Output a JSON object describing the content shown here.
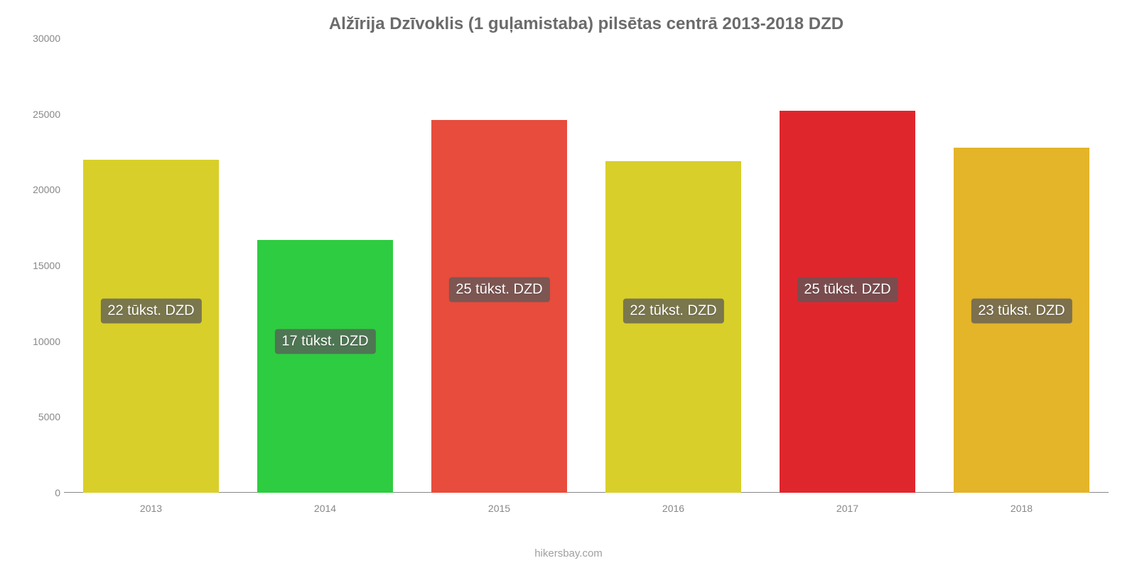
{
  "chart": {
    "type": "bar",
    "title": "Alžīrija Dzīvoklis (1 guļamistaba) pilsētas centrā 2013-2018 DZD",
    "title_fontsize": 24,
    "title_color": "#6b6b6b",
    "source": "hikersbay.com",
    "source_fontsize": 15,
    "source_color": "#a0a0a0",
    "background_color": "#ffffff",
    "axis_color": "#888888",
    "tick_fontsize": 14,
    "label_fontsize": 20,
    "bar_width_pct": 78,
    "ylim": [
      0,
      30000
    ],
    "ytick_step": 5000,
    "yticks": [
      {
        "v": 0,
        "label": "0"
      },
      {
        "v": 5000,
        "label": "5000"
      },
      {
        "v": 10000,
        "label": "10000"
      },
      {
        "v": 15000,
        "label": "15000"
      },
      {
        "v": 20000,
        "label": "20000"
      },
      {
        "v": 25000,
        "label": "25000"
      },
      {
        "v": 30000,
        "label": "30000"
      }
    ],
    "categories": [
      "2013",
      "2014",
      "2015",
      "2016",
      "2017",
      "2018"
    ],
    "series": [
      {
        "value": 22000,
        "color": "#d9cf2b",
        "label": "22 tūkst. DZD",
        "label_y": 12000
      },
      {
        "value": 16700,
        "color": "#2ecc40",
        "label": "17 tūkst. DZD",
        "label_y": 10000
      },
      {
        "value": 24600,
        "color": "#e74c3c",
        "label": "25 tūkst. DZD",
        "label_y": 13400
      },
      {
        "value": 21900,
        "color": "#d9cf2b",
        "label": "22 tūkst. DZD",
        "label_y": 12000
      },
      {
        "value": 25200,
        "color": "#e0262d",
        "label": "25 tūkst. DZD",
        "label_y": 13400
      },
      {
        "value": 22800,
        "color": "#e4b429",
        "label": "23 tūkst. DZD",
        "label_y": 12000
      }
    ]
  }
}
